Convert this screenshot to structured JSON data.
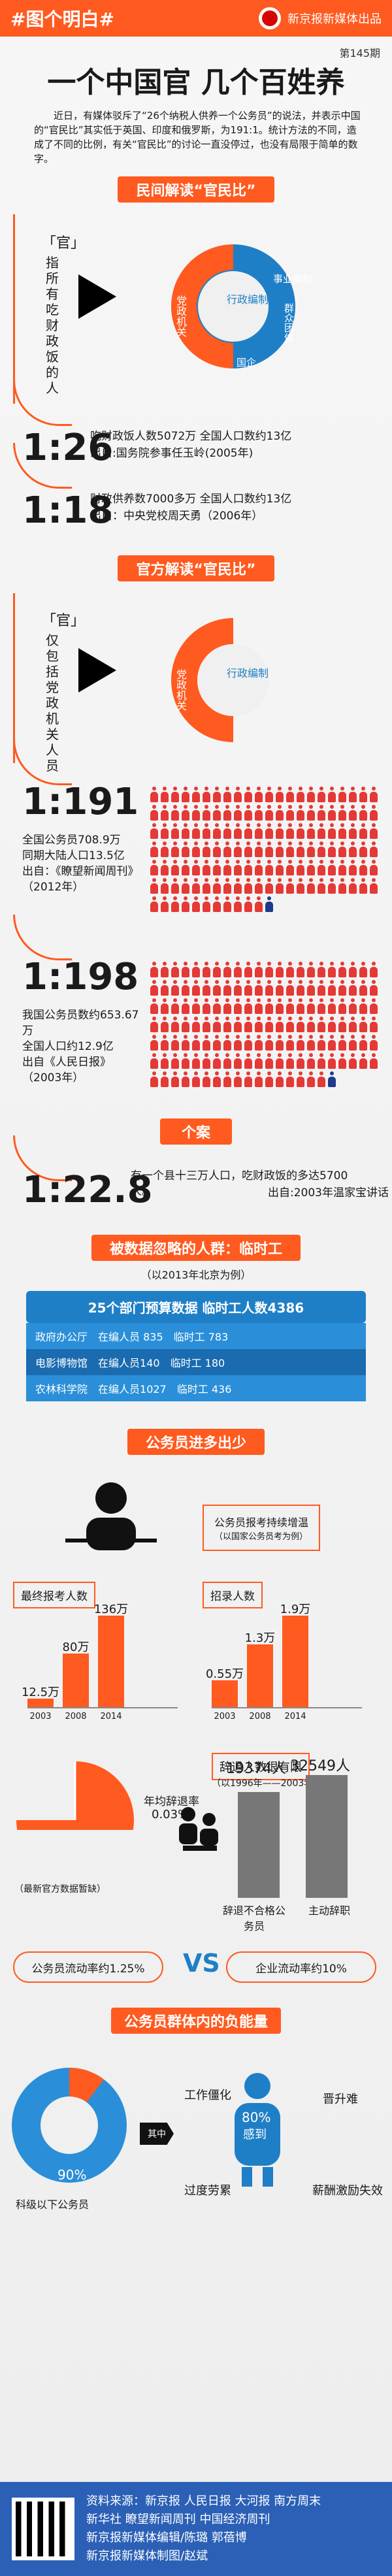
{
  "header": {
    "brand": "#图个明白#",
    "media": "新京报新媒体出品"
  },
  "hero": {
    "issue": "第145期",
    "title": "一个中国官 几个百姓养",
    "intro": "近日，有媒体驳斥了“26个纳税人供养一个公务员”的说法，并表示中国的“官民比”其实低于英国、印度和俄罗斯，为191:1。统计方法的不同，造成了不同的比例，有关“官民比”的讨论一直没停过，也没有局限于简单的数字。"
  },
  "sections": {
    "folk": "民间解读“官民比”",
    "official": "官方解读“官民比”",
    "case": "个案",
    "temp": "被数据忽略的人群：临时工",
    "temp_note": "（以2013年北京为例）",
    "civil": "公务员进多出少",
    "burden": "公务员群体内的负能量"
  },
  "folk": {
    "bracket_label": "「官」",
    "side_text": "指所有吃财政饭的人",
    "ring_left": "党政机关",
    "ring_mid": "行政编制",
    "ring_right1": "事业编制",
    "ring_right2": "群众团体",
    "ring_right3": "国企",
    "ratio1": "1:26",
    "ratio1_text": "吃财政饭人数5072万 全国人口数约13亿",
    "ratio1_source": "出自:国务院参事任玉岭(2005年)",
    "ratio2": "1:18",
    "ratio2_text": "财政供养数7000多万 全国人口数约13亿",
    "ratio2_source": "出自：中央党校周天勇（2006年）"
  },
  "official": {
    "bracket_label": "「官」",
    "side_text": "仅包括党政机关人员",
    "ring_left": "党政机关",
    "ring_mid": "行政编制",
    "ratio1": "1:191",
    "ratio1_text": "全国公务员708.9万\n同期大陆人口13.5亿\n出自：《瞭望新闻周刊》\n（2012年）",
    "ratio2": "1:198",
    "ratio2_text": "我国公务员数约653.67万\n全国人口约12.9亿\n出自《人民日报》\n（2003年）"
  },
  "case": {
    "ratio": "1:22.8",
    "text": "有一个县十三万人口，吃财政饭的多达5700人。",
    "source": "出自:2003年温家宝讲话"
  },
  "temp": {
    "header": "25个部门预算数据 临时工人数4386",
    "rows": [
      [
        "政府办公厅",
        "在编人员 835",
        "临时工 783"
      ],
      [
        "电影博物馆",
        "在编人员140",
        "临时工 180"
      ],
      [
        "农林科学院",
        "在编人员1027",
        "临时工 436"
      ]
    ]
  },
  "civil": {
    "badge": "公务员报考持续增温",
    "badge_sub": "（以国家公务员考为例）",
    "exam_title": "最终报考人数",
    "hire_title": "招录人数",
    "exam_bars": [
      {
        "year": "2003",
        "value": "12.5万"
      },
      {
        "year": "2008",
        "value": "80万"
      },
      {
        "year": "2014",
        "value": "136万"
      }
    ],
    "hire_bars": [
      {
        "year": "2003",
        "value": "0.55万"
      },
      {
        "year": "2008",
        "value": "1.3万"
      },
      {
        "year": "2014",
        "value": "1.9万"
      }
    ],
    "quit_title": "辞退人数很有限",
    "quit_note": "（以1996年——2003年为例）",
    "annual_rate": "年均辞退率",
    "annual_value": "0.03%",
    "quit_values": [
      "19374人",
      "32549人"
    ],
    "quit_labels": [
      "辞退不合格公务员",
      "主动辞职"
    ],
    "source": "（最新官方数据暂缺）",
    "flow_left": "公务员流动率约1.25%",
    "vs": "VS",
    "flow_right": "企业流动率约10%"
  },
  "burden": {
    "center": "其中",
    "left_pct": "90%",
    "left_label": "科级以下公务员",
    "pct80": "80%",
    "pct80_label": "感到",
    "items": [
      "工作僵化",
      "晋升难",
      "过度劳累",
      "薪酬激励失效"
    ]
  },
  "footer": {
    "sources1": "资料来源：新京报 人民日报 大河报 南方周末",
    "sources2": "新华社 瞭望新闻周刊 中国经济周刊",
    "credit1": "新京报新媒体编辑/陈璐 郭蓓博",
    "credit2": "新京报新媒体制图/赵斌"
  }
}
